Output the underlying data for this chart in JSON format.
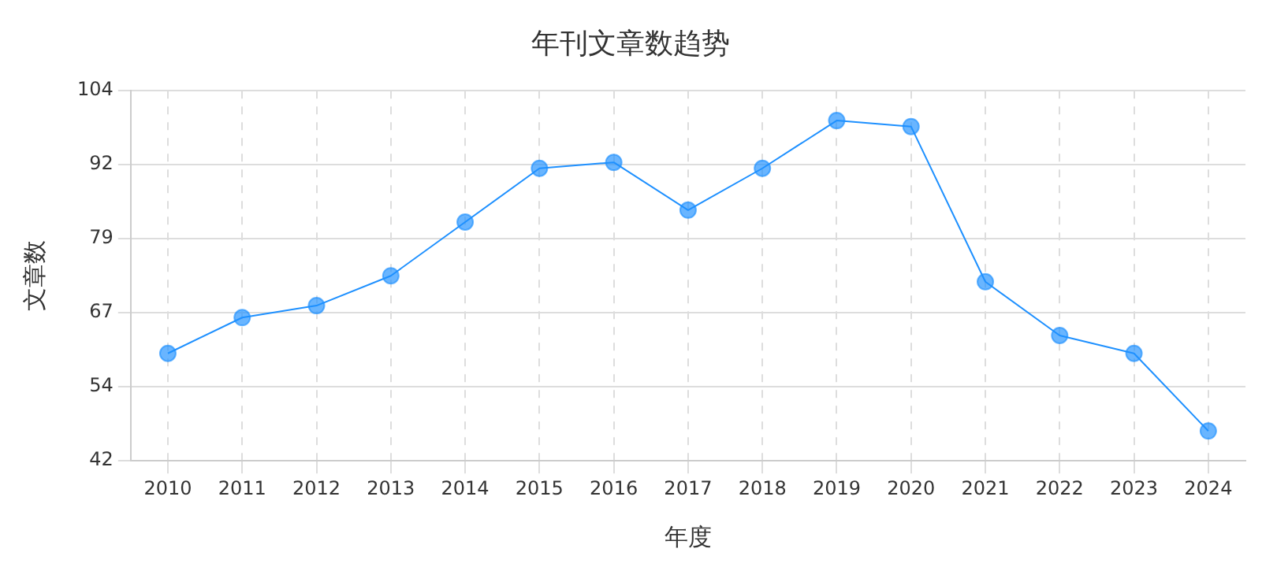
{
  "chart_data": {
    "type": "line",
    "title": "年刊文章数趋势",
    "xlabel": "年度",
    "ylabel": "文章数",
    "categories": [
      "2010",
      "2011",
      "2012",
      "2013",
      "2014",
      "2015",
      "2016",
      "2017",
      "2018",
      "2019",
      "2020",
      "2021",
      "2022",
      "2023",
      "2024"
    ],
    "series": [
      {
        "color": "#1e90ff",
        "values": [
          60,
          66,
          68,
          73,
          82,
          91,
          92,
          84,
          91,
          99,
          98,
          72,
          63,
          60,
          47
        ]
      }
    ],
    "ylim": [
      42,
      104
    ],
    "yticks": [
      42,
      {
        "value": 54.4,
        "label": "54"
      },
      {
        "value": 66.8,
        "label": "67"
      },
      {
        "value": 79.2,
        "label": "79"
      },
      {
        "value": 91.6,
        "label": "92"
      },
      104
    ],
    "grid": true,
    "legend": false,
    "marker": "circle",
    "line_style": "solid"
  }
}
